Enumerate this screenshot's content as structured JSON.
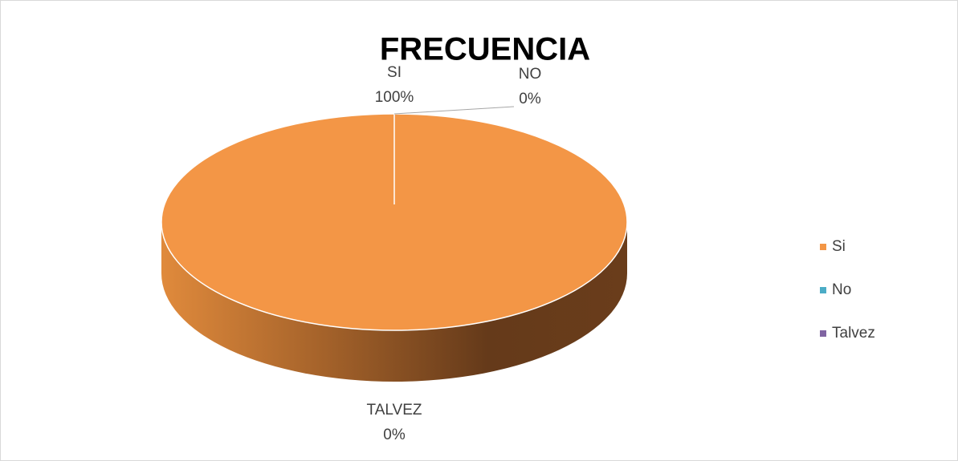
{
  "chart_data": {
    "type": "pie",
    "title": "FRECUENCIA",
    "categories": [
      "Si",
      "No",
      "Talvez"
    ],
    "label_names": [
      "SI",
      "NO",
      "TALVEZ"
    ],
    "values": [
      100,
      0,
      0
    ],
    "value_labels": [
      "100%",
      "0%",
      "0%"
    ],
    "colors": [
      "#f39646",
      "#4bacc6",
      "#8064a2"
    ],
    "legend": "right"
  }
}
